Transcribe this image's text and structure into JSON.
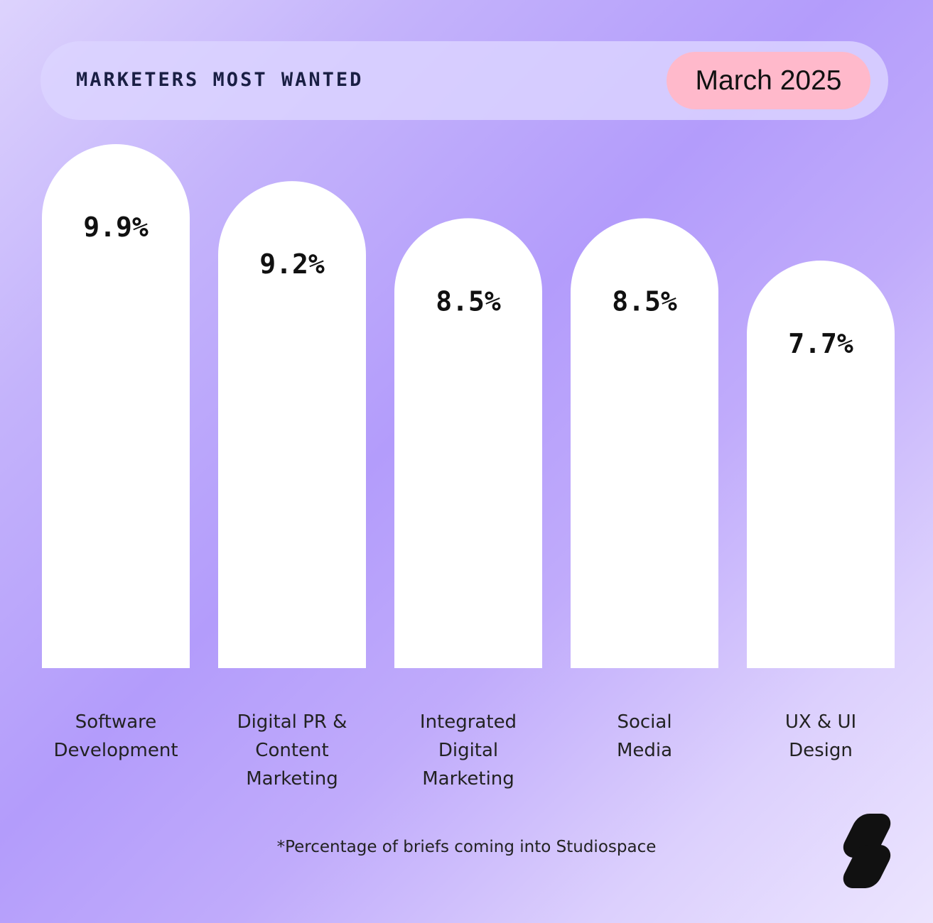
{
  "header": {
    "title": "MARKETERS MOST WANTED",
    "date": "March 2025"
  },
  "footnote": "*Percentage of briefs coming into Studiospace",
  "logo_icon": "studiospace-logo-icon",
  "colors": {
    "bar": "#ffffff",
    "date_pill": "#ffb9cb",
    "title": "#1a1f44"
  },
  "chart_data": {
    "type": "bar",
    "categories": [
      "Software Development",
      "Digital PR & Content Marketing",
      "Integrated Digital Marketing",
      "Social Media",
      "UX & UI Design"
    ],
    "category_lines": [
      [
        "Software",
        "Development"
      ],
      [
        "Digital PR &",
        "Content",
        "Marketing"
      ],
      [
        "Integrated",
        "Digital",
        "Marketing"
      ],
      [
        "Social",
        "Media"
      ],
      [
        "UX & UI",
        "Design"
      ]
    ],
    "values": [
      9.9,
      9.2,
      8.5,
      8.5,
      7.7
    ],
    "value_labels": [
      "9.9%",
      "9.2%",
      "8.5%",
      "8.5%",
      "7.7%"
    ],
    "unit": "%"
  }
}
